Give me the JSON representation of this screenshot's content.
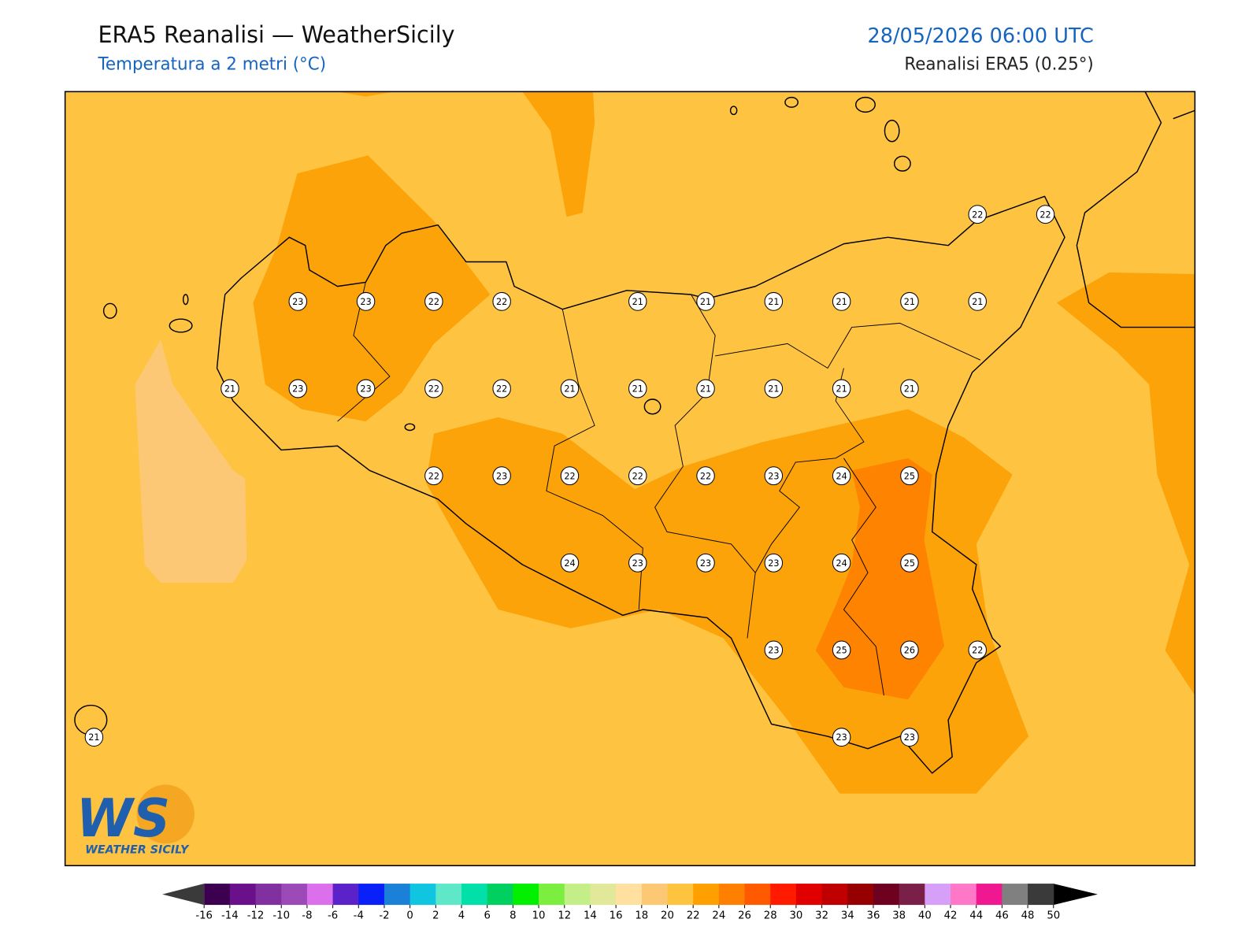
{
  "header": {
    "title": "ERA5 Reanalisi — WeatherSicily",
    "subtitle": "Temperatura a 2 metri (°C)",
    "datetime": "28/05/2026 06:00 UTC",
    "source": "Reanalisi ERA5 (0.25°)"
  },
  "grid": {
    "rows": [
      [
        null,
        null,
        null,
        null,
        null,
        null,
        null,
        null,
        null,
        null,
        null,
        null,
        null,
        22,
        22
      ],
      [
        null,
        null,
        null,
        23,
        23,
        22,
        22,
        null,
        21,
        21,
        21,
        21,
        21,
        21,
        null
      ],
      [
        null,
        null,
        21,
        23,
        23,
        22,
        22,
        21,
        21,
        21,
        21,
        21,
        21,
        null,
        null
      ],
      [
        null,
        null,
        null,
        null,
        null,
        22,
        23,
        22,
        22,
        22,
        23,
        24,
        25,
        null,
        null
      ],
      [
        null,
        null,
        null,
        null,
        null,
        null,
        null,
        24,
        23,
        23,
        23,
        24,
        25,
        null,
        null
      ],
      [
        null,
        null,
        null,
        null,
        null,
        null,
        null,
        null,
        null,
        null,
        23,
        25,
        26,
        22,
        null
      ],
      [
        21,
        null,
        null,
        null,
        null,
        null,
        null,
        null,
        null,
        null,
        null,
        23,
        23,
        null,
        null
      ]
    ]
  },
  "colorbar": {
    "ticks": [
      -16,
      -14,
      -12,
      -10,
      -8,
      -6,
      -4,
      -2,
      0,
      2,
      4,
      6,
      8,
      10,
      12,
      14,
      16,
      18,
      20,
      22,
      24,
      26,
      28,
      30,
      32,
      34,
      36,
      38,
      40,
      42,
      44,
      46,
      48,
      50
    ],
    "colors": [
      "#3d0050",
      "#6a108a",
      "#80309f",
      "#9b4ab8",
      "#dc70ec",
      "#5a22c8",
      "#0a20f8",
      "#1b80d8",
      "#10c5e0",
      "#5ee8c8",
      "#00e0a8",
      "#00d060",
      "#00f000",
      "#7cee40",
      "#c4ee88",
      "#e2e89a",
      "#ffe0a0",
      "#fdc874",
      "#fec33f",
      "#ffa000",
      "#ff8000",
      "#ff5a00",
      "#ff1a00",
      "#e00000",
      "#c00000",
      "#960000",
      "#6e0020",
      "#7a2048",
      "#d6a0f8",
      "#ff78c8",
      "#f01890",
      "#808080",
      "#3a3a3a"
    ],
    "under_color": "#3a3a3a",
    "over_color": "#000000"
  },
  "logo": {
    "initials": "WS",
    "name": "WEATHER SICILY"
  }
}
